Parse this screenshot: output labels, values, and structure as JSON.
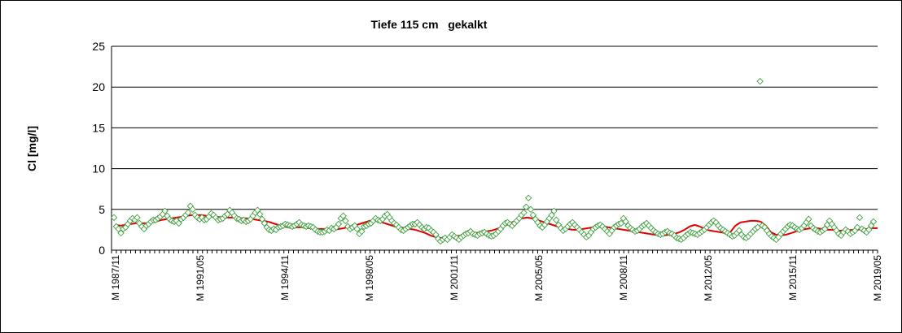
{
  "chart_data": {
    "type": "scatter",
    "title": "Tiefe 115 cm   gekalkt",
    "ylabel": "Cl [mg/l]",
    "xlabel": "",
    "ylim": [
      0,
      25
    ],
    "yticks": [
      "0",
      "5",
      "10",
      "15",
      "20",
      "25"
    ],
    "grid": "horizontal",
    "legend": "none",
    "x_tick_labels": [
      "M 1987/11",
      "M 1991/05",
      "M 1994/11",
      "M 1998/05",
      "M 2001/11",
      "M 2005/05",
      "M 2008/11",
      "M 2012/05",
      "M 2015/11",
      "M 2019/05"
    ],
    "colors": {
      "points": "#3fa03f",
      "trend": "#e00000",
      "grid": "#000000"
    },
    "series": [
      {
        "kind": "points",
        "values": [
          4.0,
          2.9,
          2.6,
          2.1,
          2.6,
          2.8,
          3.2,
          3.6,
          3.9,
          3.7,
          4.0,
          3.3,
          2.9,
          2.6,
          3.0,
          3.2,
          3.5,
          3.7,
          3.7,
          3.9,
          4.1,
          4.4,
          4.8,
          4.2,
          3.8,
          3.6,
          3.5,
          3.6,
          3.3,
          3.8,
          4.0,
          4.3,
          4.6,
          5.4,
          5.0,
          4.3,
          4.0,
          3.8,
          4.0,
          3.7,
          3.8,
          4.1,
          4.5,
          4.3,
          4.0,
          3.7,
          3.8,
          3.9,
          4.2,
          4.4,
          4.9,
          4.6,
          4.2,
          3.9,
          3.8,
          3.6,
          3.7,
          3.5,
          3.6,
          3.8,
          4.2,
          4.6,
          4.9,
          4.4,
          3.8,
          3.3,
          2.8,
          2.5,
          2.4,
          2.6,
          2.5,
          2.8,
          2.9,
          3.0,
          3.2,
          3.1,
          3.0,
          2.9,
          3.0,
          3.2,
          3.4,
          3.1,
          3.0,
          2.9,
          3.0,
          2.9,
          2.8,
          2.5,
          2.3,
          2.2,
          2.2,
          2.3,
          2.5,
          2.4,
          2.7,
          2.6,
          2.8,
          3.2,
          3.9,
          4.2,
          3.6,
          2.9,
          2.6,
          2.8,
          3.0,
          2.6,
          2.0,
          2.3,
          2.9,
          3.0,
          3.2,
          3.3,
          3.6,
          3.9,
          3.7,
          3.6,
          3.8,
          4.2,
          4.4,
          4.0,
          3.6,
          3.3,
          3.1,
          2.8,
          2.5,
          2.4,
          2.6,
          2.8,
          3.0,
          3.2,
          3.2,
          3.4,
          3.1,
          2.8,
          2.6,
          2.8,
          2.7,
          2.4,
          2.2,
          1.9,
          1.4,
          1.1,
          1.3,
          1.5,
          1.3,
          1.6,
          1.9,
          1.7,
          1.5,
          1.3,
          1.6,
          1.8,
          2.0,
          2.1,
          2.3,
          2.0,
          1.9,
          1.8,
          2.0,
          2.1,
          2.2,
          2.0,
          1.8,
          1.7,
          1.8,
          2.0,
          2.3,
          2.6,
          3.0,
          3.3,
          3.4,
          3.2,
          3.0,
          3.3,
          3.6,
          3.9,
          4.3,
          4.6,
          5.3,
          6.4,
          5.0,
          4.3,
          3.8,
          3.4,
          3.0,
          2.8,
          3.1,
          3.5,
          3.9,
          4.3,
          4.8,
          3.7,
          3.1,
          2.7,
          2.4,
          2.6,
          2.9,
          3.2,
          3.4,
          3.1,
          2.8,
          2.5,
          2.2,
          1.9,
          1.6,
          1.8,
          2.2,
          2.6,
          2.8,
          3.0,
          3.1,
          2.9,
          2.6,
          2.3,
          2.0,
          2.4,
          2.8,
          3.0,
          3.2,
          3.3,
          3.9,
          3.5,
          3.0,
          2.7,
          2.5,
          2.3,
          2.4,
          2.6,
          2.9,
          3.1,
          3.3,
          3.0,
          2.7,
          2.4,
          2.2,
          2.0,
          1.9,
          2.0,
          2.2,
          2.3,
          2.1,
          2.0,
          1.8,
          1.5,
          1.4,
          1.3,
          1.5,
          1.8,
          2.0,
          2.2,
          2.1,
          2.0,
          1.9,
          2.1,
          2.3,
          2.5,
          2.8,
          3.1,
          3.4,
          3.6,
          3.4,
          3.0,
          2.7,
          2.5,
          2.3,
          2.1,
          1.9,
          1.7,
          1.8,
          2.1,
          2.4,
          1.9,
          1.6,
          1.5,
          1.7,
          2.0,
          2.3,
          2.6,
          2.8,
          20.7,
          3.0,
          2.8,
          2.4,
          2.0,
          1.7,
          1.5,
          1.3,
          1.6,
          2.0,
          2.3,
          2.6,
          2.9,
          3.1,
          3.0,
          2.8,
          2.6,
          2.5,
          2.7,
          3.0,
          3.4,
          3.8,
          3.0,
          2.7,
          2.5,
          2.3,
          2.2,
          2.4,
          2.6,
          3.1,
          3.6,
          3.2,
          2.8,
          2.4,
          2.0,
          1.8,
          2.2,
          2.5,
          2.3,
          2.0,
          2.2,
          2.4,
          2.8,
          4.0,
          2.6,
          2.4,
          2.2,
          2.5,
          3.0,
          3.5
        ]
      },
      {
        "kind": "trend",
        "values": [
          3.1,
          3.0,
          3.1,
          3.2,
          3.3,
          3.3,
          3.3,
          3.4,
          3.5,
          3.7,
          3.8,
          3.9,
          4.0,
          4.1,
          4.2,
          4.3,
          4.3,
          4.3,
          4.2,
          4.1,
          4.1,
          4.0,
          4.0,
          4.0,
          4.0,
          3.9,
          3.9,
          3.8,
          3.7,
          3.6,
          3.5,
          3.3,
          3.1,
          2.9,
          2.8,
          2.8,
          2.8,
          2.8,
          2.7,
          2.7,
          2.6,
          2.6,
          2.5,
          2.5,
          2.6,
          2.7,
          2.9,
          3.0,
          3.2,
          3.4,
          3.6,
          3.6,
          3.5,
          3.3,
          3.1,
          2.9,
          2.8,
          2.7,
          2.6,
          2.5,
          2.3,
          2.1,
          1.8,
          1.6,
          1.5,
          1.5,
          1.6,
          1.7,
          1.8,
          1.9,
          2.0,
          2.1,
          2.2,
          2.3,
          2.4,
          2.6,
          2.8,
          3.1,
          3.4,
          3.7,
          3.9,
          4.0,
          3.9,
          3.7,
          3.5,
          3.3,
          3.1,
          2.9,
          2.7,
          2.6,
          2.5,
          2.5,
          2.6,
          2.7,
          2.8,
          2.9,
          2.9,
          2.8,
          2.7,
          2.6,
          2.5,
          2.4,
          2.3,
          2.2,
          2.1,
          2.0,
          1.9,
          1.8,
          1.8,
          1.9,
          2.0,
          2.2,
          2.5,
          2.9,
          3.1,
          2.9,
          2.6,
          2.4,
          2.3,
          2.2,
          2.1,
          2.2,
          3.0,
          3.4,
          3.5,
          3.6,
          3.6,
          3.5,
          3.0,
          2.2,
          1.9,
          1.8,
          1.9,
          2.1,
          2.3,
          2.5,
          2.6,
          2.7,
          2.7,
          2.6,
          2.5,
          2.5,
          2.4,
          2.4,
          2.4,
          2.5,
          2.5,
          2.6,
          2.6,
          2.7,
          2.7
        ]
      }
    ]
  }
}
